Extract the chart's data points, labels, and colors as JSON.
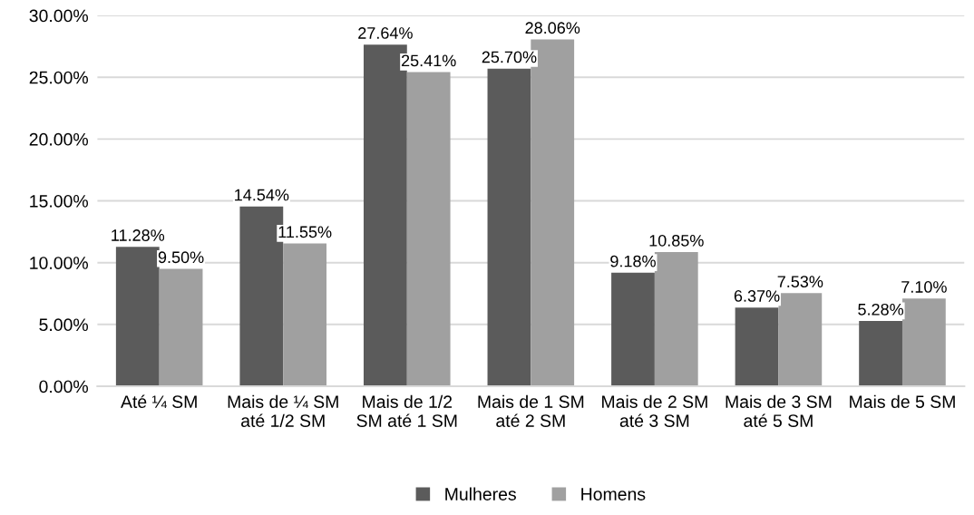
{
  "chart_data": {
    "type": "bar",
    "categories": [
      "Até ¼ SM",
      "Mais de ¼ SM\naté 1/2 SM",
      "Mais de 1/2\nSM até 1 SM",
      "Mais de 1 SM\naté 2 SM",
      "Mais de 2 SM\naté 3 SM",
      "Mais de 3 SM\naté 5 SM",
      "Mais de 5 SM"
    ],
    "series": [
      {
        "name": "Mulheres",
        "color": "#5b5b5b",
        "values": [
          11.28,
          14.54,
          27.64,
          25.7,
          9.18,
          6.37,
          5.28
        ],
        "value_labels": [
          "11.28%",
          "14.54%",
          "27.64%",
          "25.70%",
          "9.18%",
          "6.37%",
          "5.28%"
        ]
      },
      {
        "name": "Homens",
        "color": "#a0a0a0",
        "values": [
          9.5,
          11.55,
          25.41,
          28.06,
          10.85,
          7.53,
          7.1
        ],
        "value_labels": [
          "9.50%",
          "11.55%",
          "25.41%",
          "28.06%",
          "10.85%",
          "7.53%",
          "7.10%"
        ]
      }
    ],
    "ylim": [
      0,
      30
    ],
    "yticks": [
      {
        "value": 0,
        "label": "0.00%"
      },
      {
        "value": 5,
        "label": "5.00%"
      },
      {
        "value": 10,
        "label": "10.00%"
      },
      {
        "value": 15,
        "label": "15.00%"
      },
      {
        "value": 20,
        "label": "20.00%"
      },
      {
        "value": 25,
        "label": "25.00%"
      },
      {
        "value": 30,
        "label": "30.00%"
      }
    ],
    "grid": "y",
    "legend": "bottom"
  }
}
